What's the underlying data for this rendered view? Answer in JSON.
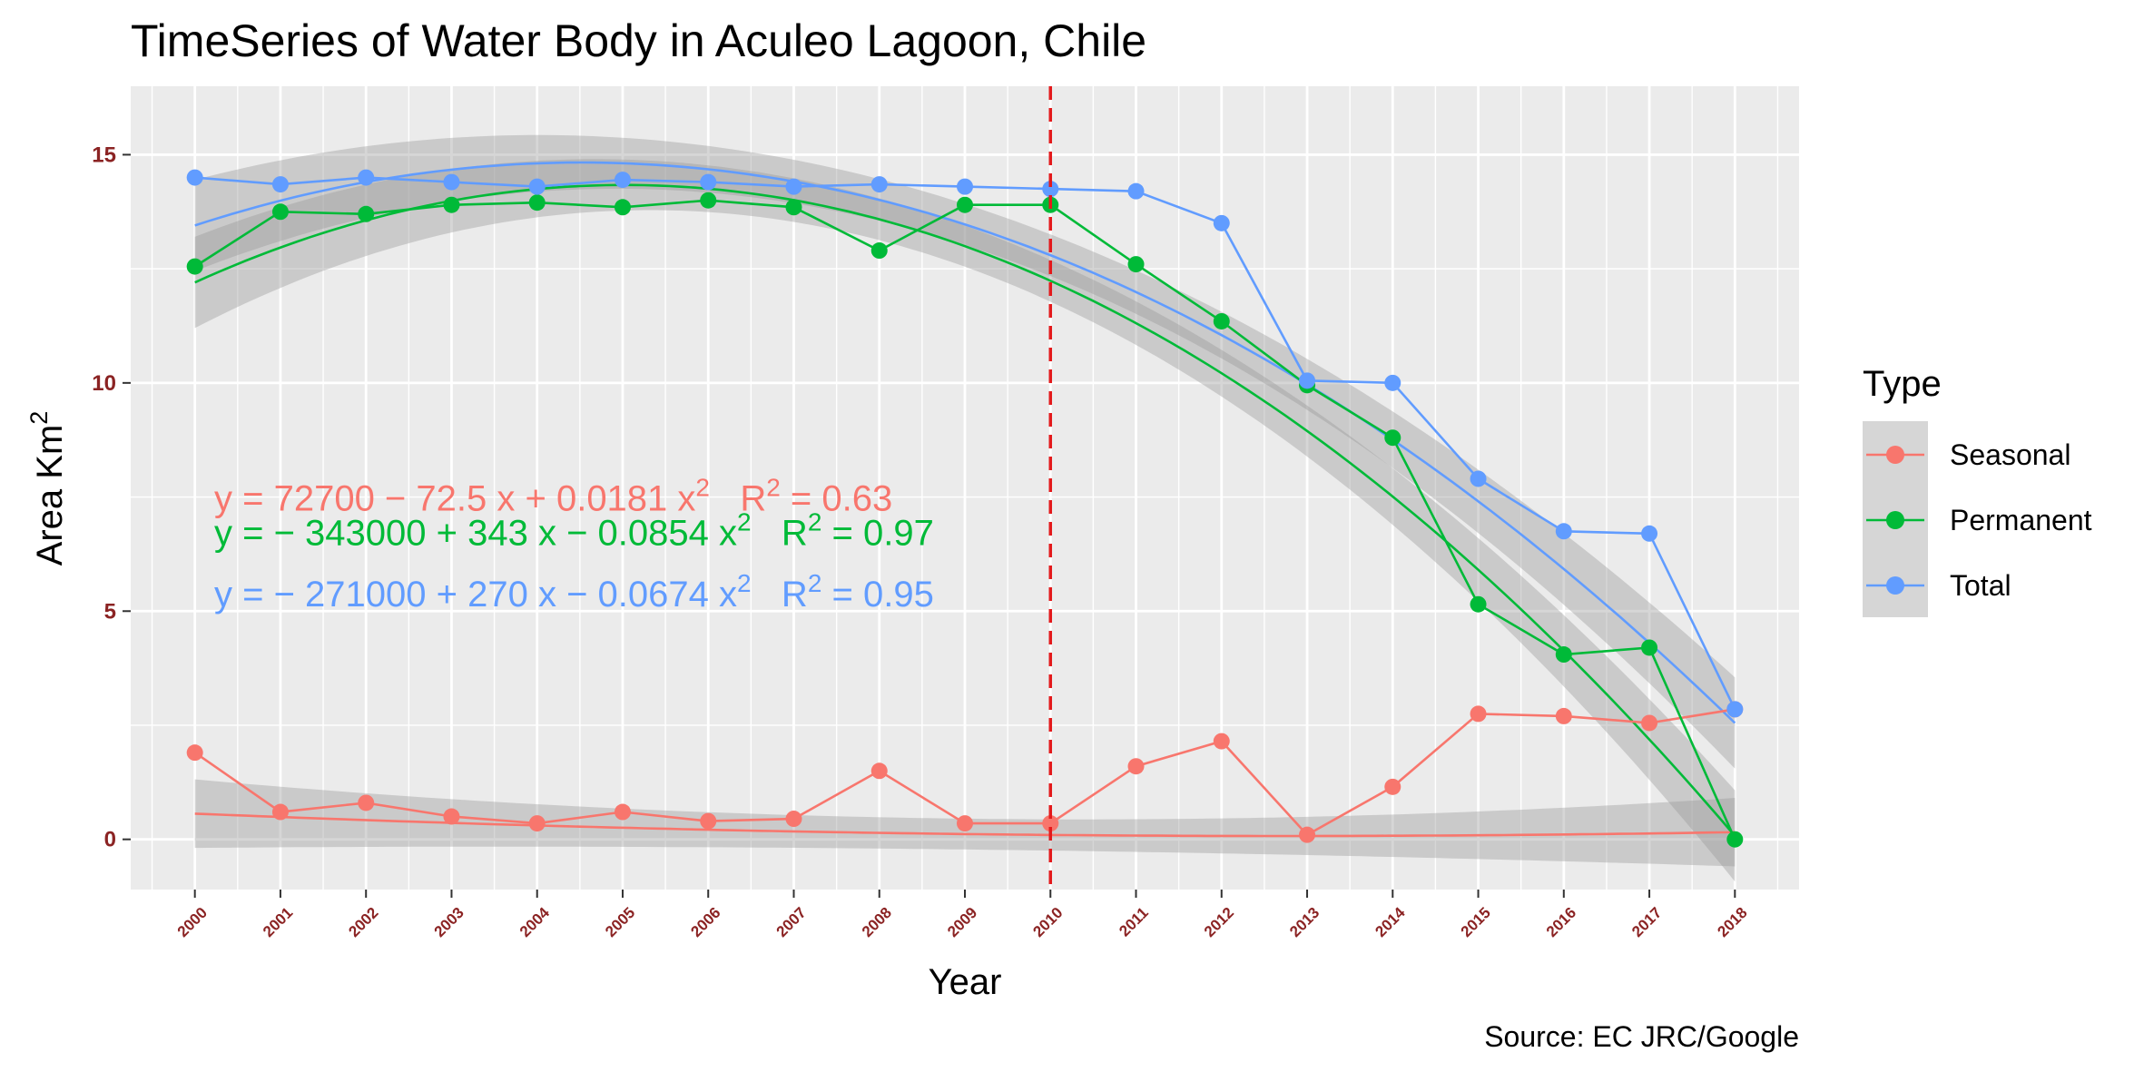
{
  "colors": {
    "seasonal": "#F8766D",
    "permanent": "#00BA38",
    "total": "#619CFF",
    "panel": "#EBEBEB",
    "ribbon": "#999999",
    "tick": "#8B2323",
    "vline": "#E31A1C"
  },
  "chart_data": {
    "type": "line",
    "title": "TimeSeries of Water Body in Aculeo Lagoon, Chile",
    "xlabel": "Year",
    "ylabel": "Area Km",
    "ylabel_sup": "2",
    "caption": "Source: EC JRC/Google",
    "xlim": [
      1999.25,
      2018.75
    ],
    "ylim": [
      -1.1,
      16.5
    ],
    "yticks": [
      "0",
      "5",
      "10",
      "15"
    ],
    "x": [
      "2000",
      "2001",
      "2002",
      "2003",
      "2004",
      "2005",
      "2006",
      "2007",
      "2008",
      "2009",
      "2010",
      "2011",
      "2012",
      "2013",
      "2014",
      "2015",
      "2016",
      "2017",
      "2018"
    ],
    "vline_x": 2010,
    "grid": true,
    "legend": {
      "title": "Type",
      "placement": "right",
      "items": [
        {
          "key": "seasonal",
          "label": "Seasonal"
        },
        {
          "key": "permanent",
          "label": "Permanent"
        },
        {
          "key": "total",
          "label": "Total"
        }
      ]
    },
    "series": [
      {
        "key": "seasonal",
        "name": "Seasonal",
        "values": [
          1.9,
          0.6,
          0.8,
          0.5,
          0.35,
          0.6,
          0.4,
          0.45,
          1.5,
          0.35,
          0.35,
          1.6,
          2.15,
          0.1,
          1.15,
          2.75,
          2.7,
          2.55,
          2.85
        ],
        "fit": {
          "a": 0.00302,
          "b": -0.0769,
          "c": 0.5635
        },
        "band": 0.75
      },
      {
        "key": "permanent",
        "name": "Permanent",
        "values": [
          12.55,
          13.75,
          13.7,
          13.9,
          13.95,
          13.85,
          14.0,
          13.85,
          12.9,
          13.9,
          13.9,
          12.6,
          11.35,
          9.95,
          8.8,
          5.15,
          4.05,
          4.2,
          0.0
        ],
        "fit": {
          "a": -0.08466,
          "b": 0.8502,
          "c": 12.2013
        },
        "band": 1.0
      },
      {
        "key": "total",
        "name": "Total",
        "values": [
          14.5,
          14.35,
          14.5,
          14.4,
          14.3,
          14.45,
          14.4,
          14.3,
          14.35,
          14.3,
          14.25,
          14.2,
          13.5,
          10.05,
          10.0,
          7.9,
          6.75,
          6.7,
          2.85
        ],
        "fit": {
          "a": -0.06755,
          "b": 0.6103,
          "c": 13.4501
        },
        "band": 1.0
      }
    ],
    "equations": [
      {
        "key": "seasonal",
        "p1": "y = 72700 − 72.5 x + 0.0181 x",
        "sup": "2",
        "p2": "   R",
        "sup2": "2",
        "p3": " = 0.63"
      },
      {
        "key": "permanent",
        "p1": "y = − 343000 + 343 x − 0.0854 x",
        "sup": "2",
        "p2": "   R",
        "sup2": "2",
        "p3": " = 0.97"
      },
      {
        "key": "total",
        "p1": "y = − 271000 + 270 x − 0.0674 x",
        "sup": "2",
        "p2": "   R",
        "sup2": "2",
        "p3": " = 0.95"
      }
    ]
  }
}
